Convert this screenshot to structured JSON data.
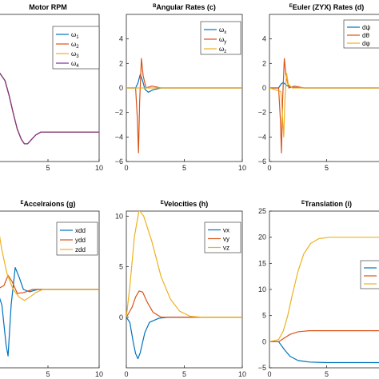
{
  "colors": {
    "c1": "#0072BD",
    "c2": "#D95319",
    "c3": "#EDB120",
    "c4": "#7E2F8E"
  },
  "chart_data": [
    {
      "id": "motor-rpm",
      "type": "line",
      "title": {
        "sup": "",
        "main": "Motor RPM"
      },
      "xlim": [
        0,
        10
      ],
      "ylim": [
        0,
        1
      ],
      "xticks": [
        5,
        10
      ],
      "yticks": [],
      "legend": {
        "position": "top-right",
        "entries": [
          {
            "base": "ω",
            "sub": "1"
          },
          {
            "base": "ω",
            "sub": "2"
          },
          {
            "base": "ω",
            "sub": "3"
          },
          {
            "base": "ω",
            "sub": "4"
          }
        ]
      },
      "series": [
        {
          "name": "ω1",
          "color": "c1",
          "points": [
            [
              0,
              0.62
            ],
            [
              0.3,
              0.6
            ],
            [
              0.8,
              0.55
            ],
            [
              1.2,
              0.45
            ],
            [
              1.6,
              0.33
            ],
            [
              2.0,
              0.22
            ],
            [
              2.4,
              0.15
            ],
            [
              2.7,
              0.12
            ],
            [
              3.0,
              0.12
            ],
            [
              3.4,
              0.15
            ],
            [
              3.8,
              0.18
            ],
            [
              4.3,
              0.2
            ],
            [
              5,
              0.2
            ],
            [
              10,
              0.2
            ]
          ]
        },
        {
          "name": "ω2",
          "color": "c2",
          "points": [
            [
              0,
              0.62
            ],
            [
              0.3,
              0.6
            ],
            [
              0.8,
              0.55
            ],
            [
              1.2,
              0.45
            ],
            [
              1.6,
              0.33
            ],
            [
              2.0,
              0.22
            ],
            [
              2.4,
              0.15
            ],
            [
              2.7,
              0.12
            ],
            [
              3.0,
              0.12
            ],
            [
              3.4,
              0.15
            ],
            [
              3.8,
              0.18
            ],
            [
              4.3,
              0.2
            ],
            [
              5,
              0.2
            ],
            [
              10,
              0.2
            ]
          ]
        },
        {
          "name": "ω3",
          "color": "c3",
          "points": [
            [
              0,
              0.62
            ],
            [
              0.3,
              0.6
            ],
            [
              0.8,
              0.55
            ],
            [
              1.2,
              0.45
            ],
            [
              1.6,
              0.33
            ],
            [
              2.0,
              0.22
            ],
            [
              2.4,
              0.15
            ],
            [
              2.7,
              0.12
            ],
            [
              3.0,
              0.12
            ],
            [
              3.4,
              0.15
            ],
            [
              3.8,
              0.18
            ],
            [
              4.3,
              0.2
            ],
            [
              5,
              0.2
            ],
            [
              10,
              0.2
            ]
          ]
        },
        {
          "name": "ω4",
          "color": "c4",
          "points": [
            [
              0,
              0.62
            ],
            [
              0.3,
              0.6
            ],
            [
              0.8,
              0.55
            ],
            [
              1.2,
              0.45
            ],
            [
              1.6,
              0.33
            ],
            [
              2.0,
              0.22
            ],
            [
              2.4,
              0.15
            ],
            [
              2.7,
              0.12
            ],
            [
              3.0,
              0.12
            ],
            [
              3.4,
              0.15
            ],
            [
              3.8,
              0.18
            ],
            [
              4.3,
              0.2
            ],
            [
              5,
              0.2
            ],
            [
              10,
              0.2
            ]
          ]
        }
      ]
    },
    {
      "id": "angular-rates",
      "type": "line",
      "title": {
        "sup": "B",
        "main": "Angular Rates (c)"
      },
      "xlim": [
        0,
        10
      ],
      "ylim": [
        -6,
        6
      ],
      "xticks": [
        0,
        5,
        10
      ],
      "yticks": [
        -6,
        -4,
        -2,
        0,
        2,
        4
      ],
      "legend": {
        "position": "top-right",
        "entries": [
          {
            "base": "ω",
            "sub": "x"
          },
          {
            "base": "ω",
            "sub": "y"
          },
          {
            "base": "ω",
            "sub": "z"
          }
        ]
      },
      "series": [
        {
          "name": "ωx",
          "color": "c1",
          "points": [
            [
              0,
              0
            ],
            [
              0.8,
              0
            ],
            [
              1.0,
              0.4
            ],
            [
              1.2,
              1.1
            ],
            [
              1.4,
              0.6
            ],
            [
              1.6,
              -0.1
            ],
            [
              1.9,
              -0.35
            ],
            [
              2.3,
              -0.15
            ],
            [
              3,
              0
            ],
            [
              10,
              0
            ]
          ]
        },
        {
          "name": "ωy",
          "color": "c2",
          "points": [
            [
              0,
              0
            ],
            [
              0.8,
              0
            ],
            [
              0.95,
              -2.5
            ],
            [
              1.05,
              -5.3
            ],
            [
              1.15,
              -1.0
            ],
            [
              1.3,
              2.4
            ],
            [
              1.45,
              1.0
            ],
            [
              1.7,
              0
            ],
            [
              2.2,
              0.15
            ],
            [
              3,
              0
            ],
            [
              10,
              0
            ]
          ]
        },
        {
          "name": "ωz",
          "color": "c3",
          "points": [
            [
              0,
              0
            ],
            [
              10,
              0
            ]
          ]
        }
      ]
    },
    {
      "id": "euler-rates",
      "type": "line",
      "title": {
        "sup": "E",
        "main": "Euler (ZYX) Rates (d)"
      },
      "xlim": [
        0,
        10
      ],
      "ylim": [
        -6,
        6
      ],
      "xticks": [
        0,
        5
      ],
      "yticks": [
        -6,
        -4,
        -2,
        0,
        2,
        4
      ],
      "legend": {
        "position": "top-right",
        "entries": [
          {
            "base": "dψ",
            "sub": ""
          },
          {
            "base": "dθ",
            "sub": ""
          },
          {
            "base": "dφ",
            "sub": ""
          }
        ]
      },
      "series": [
        {
          "name": "dψ",
          "color": "c1",
          "points": [
            [
              0,
              0
            ],
            [
              0.8,
              0
            ],
            [
              1.0,
              0.3
            ],
            [
              1.2,
              0.45
            ],
            [
              1.5,
              0.2
            ],
            [
              2,
              0.05
            ],
            [
              3,
              0
            ],
            [
              10,
              0
            ]
          ]
        },
        {
          "name": "dθ",
          "color": "c2",
          "points": [
            [
              0,
              0
            ],
            [
              0.8,
              0
            ],
            [
              0.95,
              -2.5
            ],
            [
              1.05,
              -5.3
            ],
            [
              1.15,
              -1.0
            ],
            [
              1.3,
              2.4
            ],
            [
              1.45,
              1.0
            ],
            [
              1.7,
              0
            ],
            [
              2.2,
              0.15
            ],
            [
              3,
              0
            ],
            [
              10,
              0
            ]
          ]
        },
        {
          "name": "dφ",
          "color": "c3",
          "points": [
            [
              0,
              0
            ],
            [
              1.0,
              -0.3
            ],
            [
              1.25,
              -4.0
            ],
            [
              1.35,
              -1.0
            ],
            [
              1.5,
              1.2
            ],
            [
              1.65,
              0.3
            ],
            [
              2,
              0
            ],
            [
              10,
              0
            ]
          ]
        }
      ]
    },
    {
      "id": "accelerations",
      "type": "line",
      "title": {
        "sup": "E",
        "main": "Accelraions (g)"
      },
      "xlim": [
        0,
        10
      ],
      "ylim": [
        -1,
        1
      ],
      "xticks": [
        5,
        10
      ],
      "yticks": [],
      "legend": {
        "position": "top-right",
        "entries": [
          {
            "base": "xdd",
            "sub": ""
          },
          {
            "base": "ydd",
            "sub": ""
          },
          {
            "base": "zdd",
            "sub": ""
          }
        ]
      },
      "series": [
        {
          "name": "xdd",
          "color": "c1",
          "points": [
            [
              0,
              0
            ],
            [
              0.5,
              -0.2
            ],
            [
              0.9,
              -0.7
            ],
            [
              1.1,
              -0.85
            ],
            [
              1.4,
              -0.2
            ],
            [
              1.8,
              0.28
            ],
            [
              2.2,
              0.15
            ],
            [
              2.6,
              0
            ],
            [
              3.2,
              -0.03
            ],
            [
              4,
              0
            ],
            [
              10,
              0
            ]
          ]
        },
        {
          "name": "ydd",
          "color": "c2",
          "points": [
            [
              0,
              0
            ],
            [
              0.7,
              0.05
            ],
            [
              1.1,
              0.18
            ],
            [
              1.5,
              0.1
            ],
            [
              2,
              -0.05
            ],
            [
              2.6,
              -0.04
            ],
            [
              3.5,
              0
            ],
            [
              10,
              0
            ]
          ]
        },
        {
          "name": "zdd",
          "color": "c3",
          "points": [
            [
              0,
              0.9
            ],
            [
              0.5,
              0.5
            ],
            [
              1,
              0.2
            ],
            [
              1.6,
              0
            ],
            [
              2.2,
              -0.1
            ],
            [
              2.7,
              -0.14
            ],
            [
              3.2,
              -0.1
            ],
            [
              3.8,
              -0.04
            ],
            [
              4.5,
              0
            ],
            [
              10,
              0
            ]
          ]
        }
      ]
    },
    {
      "id": "velocities",
      "type": "line",
      "title": {
        "sup": "E",
        "main": "Velocities (h)"
      },
      "xlim": [
        0,
        10
      ],
      "ylim": [
        -5,
        10.5
      ],
      "xticks": [
        0,
        5,
        10
      ],
      "yticks": [
        0,
        5,
        10
      ],
      "legend": {
        "position": "top-right",
        "entries": [
          {
            "base": "vx",
            "sub": ""
          },
          {
            "base": "vy",
            "sub": ""
          },
          {
            "base": "vz",
            "sub": ""
          }
        ]
      },
      "series": [
        {
          "name": "vx",
          "color": "c1",
          "points": [
            [
              0,
              0
            ],
            [
              0.3,
              -0.5
            ],
            [
              0.6,
              -2.5
            ],
            [
              0.8,
              -3.6
            ],
            [
              1.0,
              -4.1
            ],
            [
              1.2,
              -3.5
            ],
            [
              1.6,
              -1.5
            ],
            [
              2,
              -0.5
            ],
            [
              2.8,
              -0.1
            ],
            [
              3.6,
              0
            ],
            [
              10,
              0
            ]
          ]
        },
        {
          "name": "vy",
          "color": "c2",
          "points": [
            [
              0,
              0
            ],
            [
              0.5,
              1
            ],
            [
              0.8,
              2
            ],
            [
              1.1,
              2.6
            ],
            [
              1.4,
              2.5
            ],
            [
              1.8,
              1.5
            ],
            [
              2.3,
              0.5
            ],
            [
              3,
              0
            ],
            [
              10,
              0
            ]
          ]
        },
        {
          "name": "vz",
          "color": "c3",
          "points": [
            [
              0,
              0
            ],
            [
              0.3,
              3
            ],
            [
              0.7,
              8
            ],
            [
              1.1,
              10.6
            ],
            [
              1.5,
              10
            ],
            [
              2.2,
              7.5
            ],
            [
              3,
              4
            ],
            [
              3.8,
              1.8
            ],
            [
              4.6,
              0.6
            ],
            [
              5.5,
              0.1
            ],
            [
              6.5,
              0
            ],
            [
              10,
              0
            ]
          ]
        }
      ]
    },
    {
      "id": "translation",
      "type": "line",
      "title": {
        "sup": "E",
        "main": "Translation (i)"
      },
      "xlim": [
        0,
        10
      ],
      "ylim": [
        -5,
        25
      ],
      "xticks": [
        0,
        5
      ],
      "yticks": [
        -5,
        0,
        5,
        10,
        15,
        20,
        25
      ],
      "legend": {
        "position": "top-right",
        "entries": [
          {
            "base": "",
            "sub": ""
          },
          {
            "base": "",
            "sub": ""
          },
          {
            "base": "",
            "sub": ""
          }
        ]
      },
      "series": [
        {
          "name": "",
          "color": "c1",
          "points": [
            [
              0,
              0
            ],
            [
              0.8,
              0
            ],
            [
              1.3,
              -1.5
            ],
            [
              1.8,
              -2.8
            ],
            [
              2.5,
              -3.6
            ],
            [
              3.5,
              -3.9
            ],
            [
              5,
              -4.0
            ],
            [
              10,
              -4.0
            ]
          ]
        },
        {
          "name": "",
          "color": "c2",
          "points": [
            [
              0,
              0
            ],
            [
              0.8,
              0
            ],
            [
              1.3,
              0.7
            ],
            [
              1.8,
              1.4
            ],
            [
              2.5,
              1.9
            ],
            [
              3.5,
              2.1
            ],
            [
              5,
              2.1
            ],
            [
              10,
              2.1
            ]
          ]
        },
        {
          "name": "",
          "color": "c3",
          "points": [
            [
              0,
              0
            ],
            [
              0.8,
              0.4
            ],
            [
              1.2,
              2
            ],
            [
              1.6,
              5
            ],
            [
              2,
              9
            ],
            [
              2.5,
              13.5
            ],
            [
              3,
              16.8
            ],
            [
              3.6,
              18.8
            ],
            [
              4.3,
              19.7
            ],
            [
              5.2,
              20
            ],
            [
              10,
              20
            ]
          ]
        }
      ]
    }
  ]
}
